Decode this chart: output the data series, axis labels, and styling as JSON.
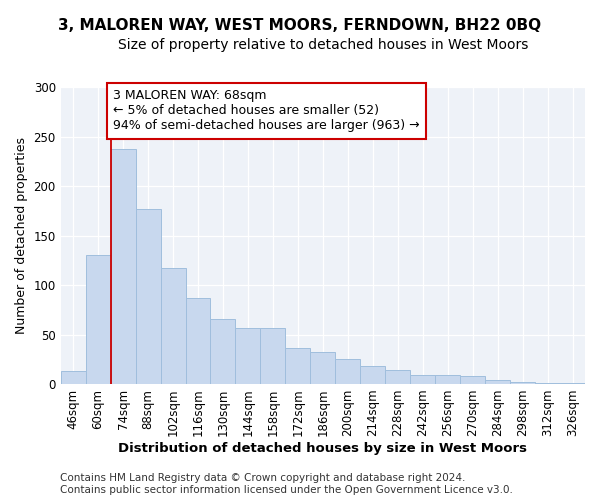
{
  "title": "3, MALOREN WAY, WEST MOORS, FERNDOWN, BH22 0BQ",
  "subtitle": "Size of property relative to detached houses in West Moors",
  "xlabel": "Distribution of detached houses by size in West Moors",
  "ylabel": "Number of detached properties",
  "bar_color": "#c8d8ee",
  "bar_edge_color": "#a0bedd",
  "background_color": "#eef2f8",
  "categories": [
    "46sqm",
    "60sqm",
    "74sqm",
    "88sqm",
    "102sqm",
    "116sqm",
    "130sqm",
    "144sqm",
    "158sqm",
    "172sqm",
    "186sqm",
    "200sqm",
    "214sqm",
    "228sqm",
    "242sqm",
    "256sqm",
    "270sqm",
    "284sqm",
    "298sqm",
    "312sqm",
    "326sqm"
  ],
  "values": [
    13,
    130,
    238,
    177,
    117,
    87,
    66,
    57,
    57,
    36,
    32,
    25,
    18,
    14,
    9,
    9,
    8,
    4,
    2,
    1,
    1
  ],
  "ylim": [
    0,
    300
  ],
  "yticks": [
    0,
    50,
    100,
    150,
    200,
    250,
    300
  ],
  "vline_x": 1.5,
  "vline_color": "#cc0000",
  "annotation_text": "3 MALOREN WAY: 68sqm\n← 5% of detached houses are smaller (52)\n94% of semi-detached houses are larger (963) →",
  "annotation_box_color": "#ffffff",
  "annotation_box_edgecolor": "#cc0000",
  "footer_line1": "Contains HM Land Registry data © Crown copyright and database right 2024.",
  "footer_line2": "Contains public sector information licensed under the Open Government Licence v3.0.",
  "title_fontsize": 11,
  "subtitle_fontsize": 10,
  "xlabel_fontsize": 9.5,
  "ylabel_fontsize": 9,
  "tick_fontsize": 8.5,
  "annotation_fontsize": 9,
  "footer_fontsize": 7.5
}
